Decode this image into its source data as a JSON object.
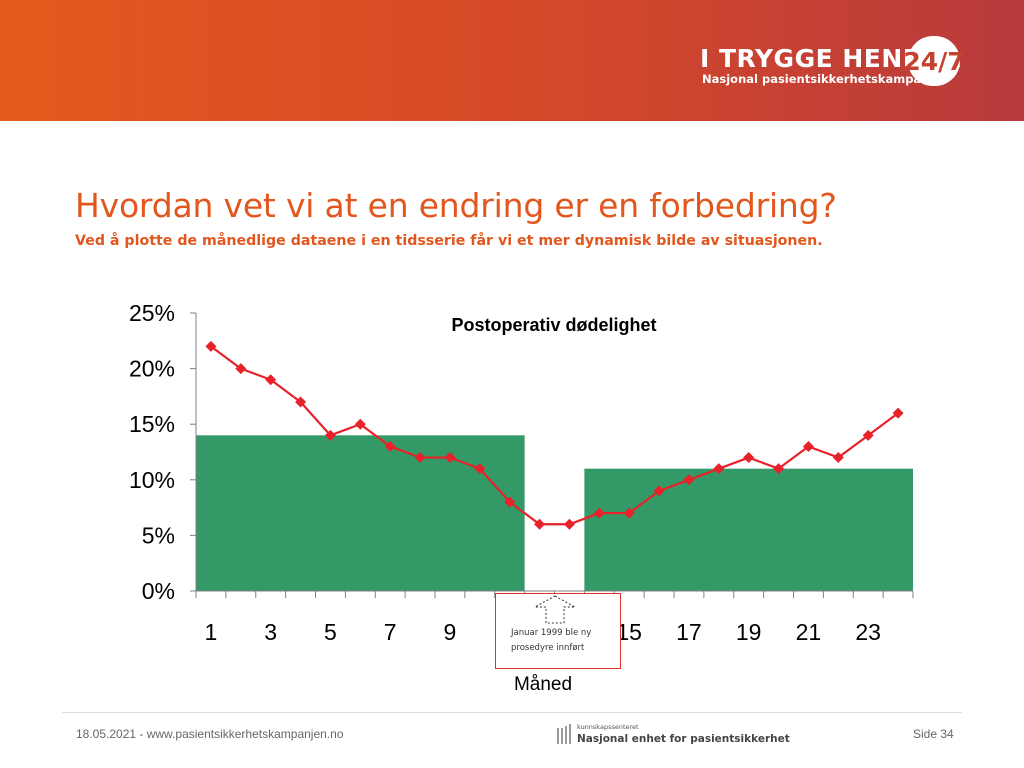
{
  "header": {
    "brand_title": "I TRYGGE HENDER",
    "brand_badge": "24/7",
    "brand_subtitle": "Nasjonal pasientsikkerhetskampanje",
    "colors": {
      "banner_start": "#e4591c",
      "banner_end": "#b83a3c",
      "accent": "#e2571d"
    }
  },
  "slide": {
    "title": "Hvordan vet vi at en endring er en forbedring?",
    "subtitle": "Ved å plotte de månedlige dataene i en tidsserie får vi et mer dynamisk bilde av situasjonen."
  },
  "chart_data": {
    "type": "line",
    "title": "Postoperativ dødelighet",
    "xlabel": "Måned",
    "ylabel": "",
    "ylim": [
      0,
      25
    ],
    "y_ticks": [
      "0%",
      "5%",
      "10%",
      "15%",
      "20%",
      "25%"
    ],
    "x": [
      1,
      2,
      3,
      4,
      5,
      6,
      7,
      8,
      9,
      10,
      11,
      12,
      13,
      14,
      15,
      16,
      17,
      18,
      19,
      20,
      21,
      22,
      23,
      24
    ],
    "x_tick_labels": [
      {
        "x": 1,
        "label": "1"
      },
      {
        "x": 3,
        "label": "3"
      },
      {
        "x": 5,
        "label": "5"
      },
      {
        "x": 7,
        "label": "7"
      },
      {
        "x": 9,
        "label": "9"
      },
      {
        "x": 15,
        "label": "15"
      },
      {
        "x": 17,
        "label": "17"
      },
      {
        "x": 19,
        "label": "19"
      },
      {
        "x": 21,
        "label": "21"
      },
      {
        "x": 23,
        "label": "23"
      }
    ],
    "series": [
      {
        "values": [
          22,
          20,
          19,
          17,
          14,
          15,
          13,
          12,
          12,
          11,
          8,
          6,
          6,
          7,
          7,
          9,
          10,
          11,
          12,
          11,
          13,
          12,
          14,
          16
        ],
        "color": "#e8222a",
        "marker": "diamond"
      }
    ],
    "bars": [
      {
        "x_start": 1,
        "x_end": 11,
        "value": 14,
        "color": "#339966"
      },
      {
        "x_start": 14,
        "x_end": 24,
        "value": 11,
        "color": "#339966"
      }
    ],
    "annotation": {
      "x": 12,
      "text": "Januar 1999 ble ny prosedyre innført"
    },
    "grid": false,
    "legend": "none"
  },
  "footer": {
    "date_url": "18.05.2021 - www.pasientsikkerhetskampanjen.no",
    "logo_small": "kunnskapssenteret",
    "logo_text": "Nasjonal enhet for pasientsikkerhet",
    "page": "Side 34"
  }
}
